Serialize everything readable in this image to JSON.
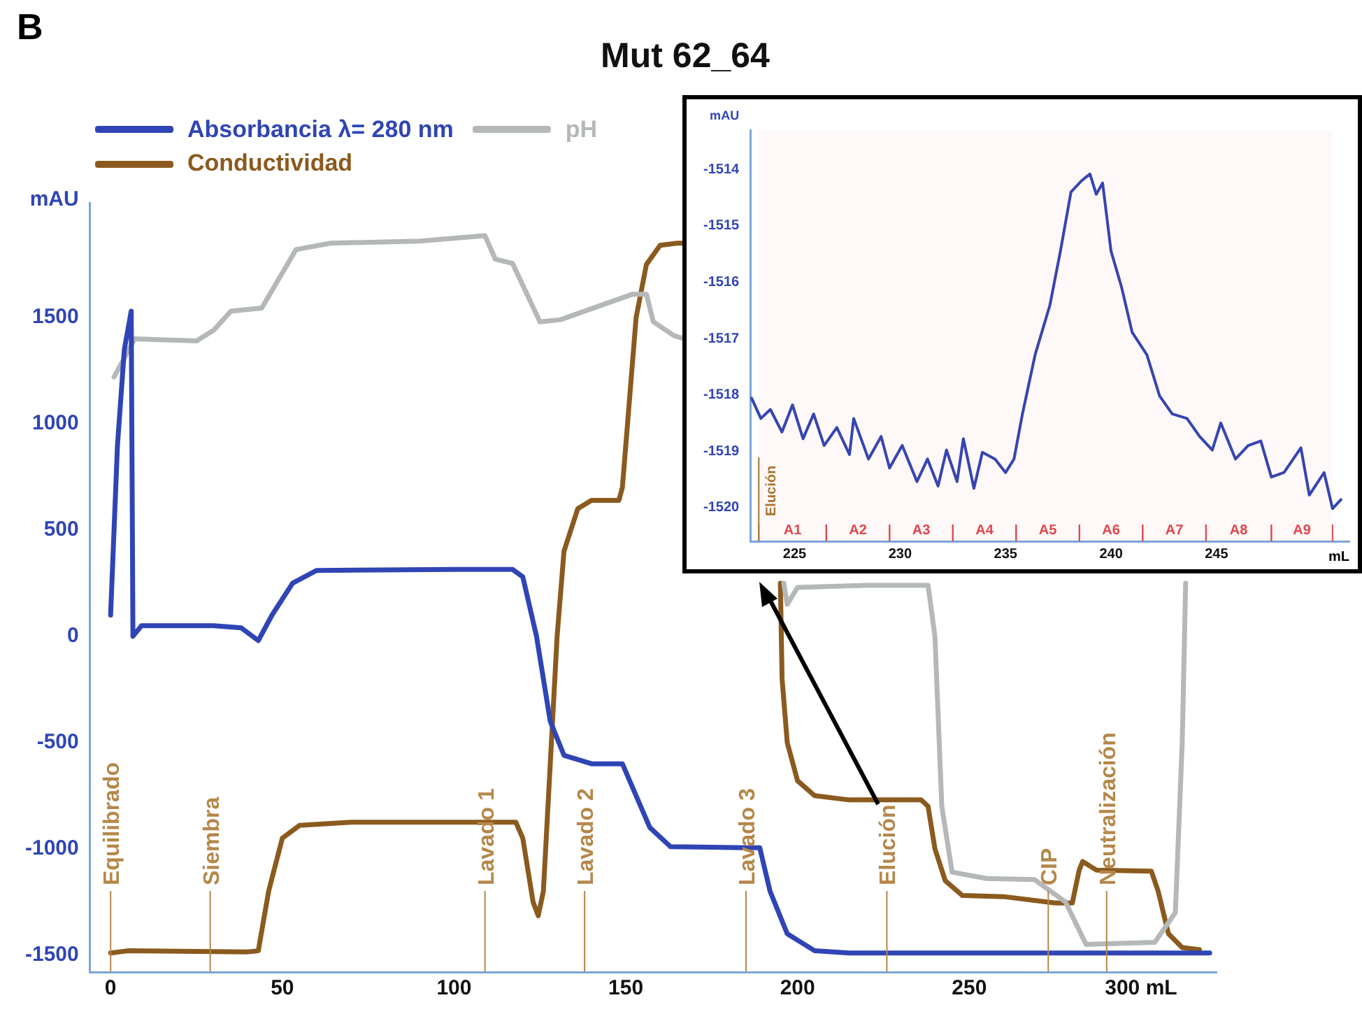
{
  "chart_data": [
    {
      "type": "line",
      "title": "Mut 62_64",
      "annotations": [
        "B"
      ],
      "ylabel": "mAU",
      "legend": "top left",
      "grid": false,
      "xlim": [
        -6,
        322
      ],
      "xticks": [
        0,
        50,
        100,
        150,
        200,
        250,
        {
          "value": 300,
          "label": "300 mL"
        }
      ],
      "ylim": [
        -1580,
        2040
      ],
      "yticks": [
        -1500,
        -1000,
        -500,
        0,
        500,
        1000,
        1500
      ],
      "ref_lines": [
        {
          "axis": "x",
          "value": 0,
          "label": "Equilibrado",
          "color": "#b5874a"
        },
        {
          "axis": "x",
          "value": 29,
          "label": "Siembra",
          "color": "#b5874a"
        },
        {
          "axis": "x",
          "value": 109,
          "label": "Lavado 1",
          "color": "#b5874a"
        },
        {
          "axis": "x",
          "value": 138,
          "label": "Lavado 2",
          "color": "#b5874a"
        },
        {
          "axis": "x",
          "value": 185,
          "label": "Lavado 3",
          "color": "#b5874a"
        },
        {
          "axis": "x",
          "value": 226,
          "label": "Elución",
          "color": "#b5874a"
        },
        {
          "axis": "x",
          "value": 273,
          "label": "CIP",
          "color": "#b5874a"
        },
        {
          "axis": "x",
          "value": 290,
          "label": "Neutralización",
          "color": "#b5874a"
        }
      ],
      "series": [
        {
          "name": "Absorbancia λ= 280 nm",
          "color": "#2f45b5",
          "x": [
            0,
            2,
            4,
            6,
            6.5,
            9,
            30,
            38,
            43,
            47,
            53,
            60,
            100,
            117,
            120,
            124,
            128,
            132,
            140,
            149,
            153,
            157,
            163,
            185,
            189,
            192,
            197,
            205,
            215,
            320
          ],
          "values": [
            100,
            900,
            1350,
            1530,
            0,
            50,
            50,
            40,
            -20,
            100,
            250,
            310,
            315,
            315,
            280,
            0,
            -400,
            -560,
            -600,
            -600,
            -750,
            -900,
            -990,
            -995,
            -995,
            -1200,
            -1400,
            -1480,
            -1490,
            -1490
          ]
        },
        {
          "name": "pH",
          "color": "#b4b8b8",
          "x": [
            1,
            7,
            25,
            30,
            35,
            44,
            54,
            64,
            90,
            109,
            112,
            117,
            125,
            131,
            152,
            156,
            158,
            164,
            167,
            180,
            196,
            197,
            200,
            220,
            238,
            240,
            242,
            245,
            255,
            269,
            278,
            284,
            304,
            310,
            312,
            313
          ],
          "values": [
            1220,
            1400,
            1390,
            1440,
            1530,
            1545,
            1820,
            1850,
            1860,
            1885,
            1775,
            1755,
            1480,
            1490,
            1610,
            1610,
            1480,
            1415,
            1400,
            null,
            250,
            150,
            230,
            240,
            240,
            0,
            -800,
            -1110,
            -1140,
            -1145,
            -1250,
            -1450,
            -1440,
            -1300,
            -500,
            250
          ]
        },
        {
          "name": "Conductividad",
          "color": "#8b5a1e",
          "x": [
            0,
            5,
            40,
            43,
            46,
            50,
            55,
            70,
            118,
            120,
            123,
            124.5,
            126,
            128,
            130,
            132,
            136,
            140,
            148,
            149,
            151,
            153,
            156,
            160,
            165,
            167,
            180,
            195,
            195.5,
            197,
            200,
            205,
            215,
            236,
            238,
            240,
            243,
            248,
            260,
            275,
            280,
            282,
            283,
            287,
            303,
            305,
            308,
            312,
            317
          ],
          "values": [
            -1490,
            -1480,
            -1485,
            -1480,
            -1200,
            -950,
            -890,
            -875,
            -875,
            -950,
            -1250,
            -1315,
            -1200,
            -600,
            0,
            400,
            600,
            640,
            640,
            700,
            1100,
            1500,
            1750,
            1840,
            1850,
            1850,
            null,
            250,
            -200,
            -500,
            -680,
            -750,
            -770,
            -770,
            -800,
            -1000,
            -1150,
            -1220,
            -1225,
            -1255,
            -1255,
            -1100,
            -1060,
            -1100,
            -1105,
            -1200,
            -1400,
            -1465,
            -1475
          ]
        }
      ]
    },
    {
      "type": "line",
      "ylabel": "mAU",
      "xlabel": "mL",
      "grid": false,
      "xlim": [
        222.9,
        251.3
      ],
      "xticks": [
        225,
        230,
        235,
        240,
        245
      ],
      "ylim": [
        -1520.6,
        -1513.3
      ],
      "yticks": [
        -1520,
        -1519,
        -1518,
        -1517,
        -1516,
        -1515,
        -1514
      ],
      "ref_lines": [
        {
          "axis": "x",
          "value": 223.3,
          "label": "Elución",
          "color": "#a8742c"
        }
      ],
      "bands": [
        {
          "axis": "x",
          "from": 223.3,
          "to": 226.5,
          "label": "A1",
          "color": "#e0474c"
        },
        {
          "axis": "x",
          "from": 226.5,
          "to": 229.5,
          "label": "A2",
          "color": "#e0474c"
        },
        {
          "axis": "x",
          "from": 229.5,
          "to": 232.5,
          "label": "A3",
          "color": "#e0474c"
        },
        {
          "axis": "x",
          "from": 232.5,
          "to": 235.5,
          "label": "A4",
          "color": "#e0474c"
        },
        {
          "axis": "x",
          "from": 235.5,
          "to": 238.5,
          "label": "A5",
          "color": "#e0474c"
        },
        {
          "axis": "x",
          "from": 238.5,
          "to": 241.5,
          "label": "A6",
          "color": "#e0474c"
        },
        {
          "axis": "x",
          "from": 241.5,
          "to": 244.5,
          "label": "A7",
          "color": "#e0474c"
        },
        {
          "axis": "x",
          "from": 244.5,
          "to": 247.6,
          "label": "A8",
          "color": "#e0474c"
        },
        {
          "axis": "x",
          "from": 247.6,
          "to": 250.5,
          "label": "A9",
          "color": "#e0474c"
        }
      ],
      "series": [
        {
          "color": "#2f45b5",
          "x": [
            222.96,
            223.4,
            223.85,
            224.4,
            224.9,
            225.4,
            225.9,
            226.4,
            227,
            227.6,
            227.8,
            228.5,
            229.1,
            229.5,
            230.1,
            230.8,
            231.3,
            231.8,
            232.2,
            232.7,
            233,
            233.5,
            233.9,
            234.5,
            235,
            235.4,
            235.8,
            236.4,
            237.1,
            237.6,
            238.1,
            238.6,
            239,
            239.3,
            239.6,
            240,
            240.5,
            241,
            241.7,
            242.3,
            242.9,
            243.6,
            244.2,
            244.8,
            245.2,
            245.9,
            246.5,
            247.1,
            247.6,
            248.2,
            249,
            249.4,
            250.1,
            250.5,
            250.9
          ],
          "values": [
            -1518.06,
            -1518.42,
            -1518.26,
            -1518.66,
            -1518.18,
            -1518.78,
            -1518.34,
            -1518.9,
            -1518.58,
            -1519.06,
            -1518.42,
            -1519.14,
            -1518.74,
            -1519.3,
            -1518.9,
            -1519.54,
            -1519.14,
            -1519.62,
            -1518.98,
            -1519.54,
            -1518.78,
            -1519.66,
            -1519.02,
            -1519.14,
            -1519.38,
            -1519.14,
            -1518.34,
            -1517.29,
            -1516.41,
            -1515.45,
            -1514.4,
            -1514.2,
            -1514.08,
            -1514.44,
            -1514.24,
            -1515.45,
            -1516.09,
            -1516.89,
            -1517.29,
            -1518.02,
            -1518.34,
            -1518.42,
            -1518.74,
            -1518.98,
            -1518.5,
            -1519.14,
            -1518.9,
            -1518.82,
            -1519.46,
            -1519.38,
            -1518.94,
            -1519.78,
            -1519.38,
            -1520.02,
            -1519.86
          ]
        }
      ]
    }
  ]
}
